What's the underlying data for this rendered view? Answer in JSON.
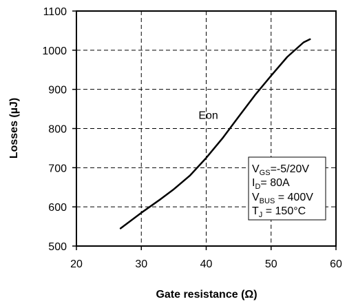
{
  "chart_data": {
    "type": "line",
    "title": "",
    "xlabel": "Gate resistance (Ω)",
    "ylabel": "Losses (µJ)",
    "xlim": [
      20,
      60
    ],
    "ylim": [
      500,
      1100
    ],
    "xticks": [
      20,
      30,
      40,
      50,
      60
    ],
    "yticks": [
      500,
      600,
      700,
      800,
      900,
      1000,
      1100
    ],
    "grid": true,
    "grid_style": "dashed",
    "series": [
      {
        "name": "Eon",
        "color": "#000000",
        "x": [
          26.8,
          30,
          33,
          35,
          37.5,
          40,
          42.5,
          45,
          47.5,
          50,
          52.5,
          55,
          56
        ],
        "y": [
          545,
          585,
          620,
          645,
          680,
          725,
          775,
          830,
          885,
          935,
          983,
          1020,
          1028
        ]
      }
    ],
    "annotations": [
      {
        "text": "Eon",
        "x": 42,
        "y": 835
      }
    ],
    "conditions_box": {
      "lines": [
        {
          "main": "V",
          "sub": "GS",
          "rest": "=-5/20V"
        },
        {
          "main": "I",
          "sub": "D",
          "rest": "= 80A"
        },
        {
          "main": "V",
          "sub": "BUS",
          "rest": " = 400V"
        },
        {
          "main": "T",
          "sub": "J",
          "rest": " = 150°C"
        }
      ]
    }
  }
}
